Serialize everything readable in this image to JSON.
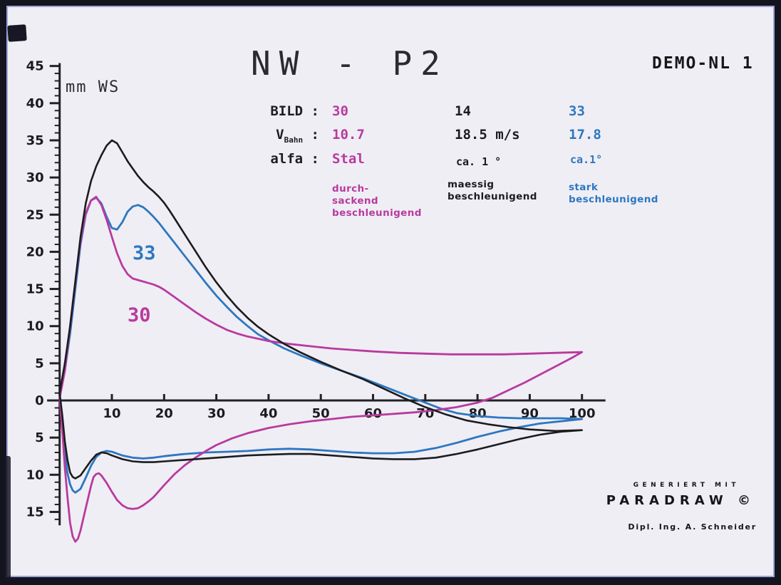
{
  "colors": {
    "magenta": "#b93a9e",
    "blue": "#2d77c0",
    "black": "#1c1c1e",
    "axis": "#222226",
    "paper": "#efeef5",
    "frame": "#14141f"
  },
  "header": {
    "title": "NW - P2",
    "plot_id": "DEMO-NL 1",
    "y_unit_label": "mm WS"
  },
  "legend": {
    "rows": [
      {
        "label": "BILD :",
        "values": [
          "30",
          "14",
          "33"
        ]
      },
      {
        "label_main": "V",
        "label_sub": "Bahn",
        "label_tail": " :",
        "values": [
          "10.7",
          "18.5 m/s",
          "17.8"
        ]
      },
      {
        "label": "alfa :",
        "values": [
          "Stal",
          "ca. 1 °",
          "ca.1°"
        ]
      }
    ],
    "descriptions": [
      "durch-\nsackend\nbeschleunigend",
      "maessig\nbeschleunigend",
      "stark\nbeschleunigend"
    ]
  },
  "curve_labels": [
    {
      "text": "33"
    },
    {
      "text": "30"
    }
  ],
  "footer": {
    "line1": "GENERIERT MIT",
    "line2": "PARADRAW ©",
    "line3": "Dipl. Ing. A. Schneider"
  },
  "chart_data": {
    "type": "line",
    "title": "NW - P2",
    "xlabel": "",
    "ylabel": "mm WS",
    "xlim": [
      0,
      104.5
    ],
    "ylim": [
      -19.5,
      45.5
    ],
    "grid": false,
    "x_ticks": [
      10,
      20,
      30,
      40,
      50,
      60,
      70,
      80,
      90,
      100
    ],
    "y_major_tick_step": 5,
    "y_minor_tick_step": 1,
    "y_label_style": "absolute-value",
    "y_label_range": [
      45,
      -15
    ],
    "legend_entries": [
      "BILD 30, V_Bahn 10.7, alfa Stal, durchsackend beschleunigend",
      "BILD 14, V_Bahn 18.5 m/s, alfa ca. 1°, maessig beschleunigend",
      "BILD 33, V_Bahn 17.8, alfa ca. 1°, stark beschleunigend"
    ],
    "series": [
      {
        "name": "BILD 33",
        "color": "#2d77c0",
        "width": 2.8,
        "upper": [
          [
            0,
            0.5
          ],
          [
            1,
            4
          ],
          [
            2,
            9
          ],
          [
            3,
            15
          ],
          [
            4,
            21
          ],
          [
            5,
            25
          ],
          [
            6,
            26.9
          ],
          [
            7,
            27.3
          ],
          [
            8,
            26.5
          ],
          [
            9,
            24.7
          ],
          [
            10,
            23.2
          ],
          [
            11,
            23
          ],
          [
            12,
            24
          ],
          [
            13,
            25.4
          ],
          [
            14,
            26.1
          ],
          [
            15,
            26.3
          ],
          [
            16,
            26
          ],
          [
            17,
            25.4
          ],
          [
            18,
            24.7
          ],
          [
            19,
            23.9
          ],
          [
            20,
            23
          ],
          [
            22,
            21.2
          ],
          [
            24,
            19.4
          ],
          [
            26,
            17.6
          ],
          [
            28,
            15.8
          ],
          [
            30,
            14.1
          ],
          [
            32,
            12.6
          ],
          [
            34,
            11.2
          ],
          [
            36,
            10
          ],
          [
            38,
            8.9
          ],
          [
            40,
            8.1
          ],
          [
            43,
            7
          ],
          [
            46,
            6.1
          ],
          [
            50,
            5
          ],
          [
            54,
            4
          ],
          [
            58,
            3
          ],
          [
            62,
            1.9
          ],
          [
            66,
            0.8
          ],
          [
            70,
            -0.3
          ],
          [
            73,
            -1.1
          ],
          [
            76,
            -1.7
          ],
          [
            80,
            -2.1
          ],
          [
            84,
            -2.3
          ],
          [
            88,
            -2.4
          ],
          [
            92,
            -2.4
          ],
          [
            96,
            -2.4
          ],
          [
            100,
            -2.5
          ]
        ],
        "lower": [
          [
            0,
            0.5
          ],
          [
            0.5,
            -3
          ],
          [
            1,
            -7
          ],
          [
            1.5,
            -9.8
          ],
          [
            2,
            -11.3
          ],
          [
            2.5,
            -12.1
          ],
          [
            3,
            -12.4
          ],
          [
            4,
            -11.9
          ],
          [
            5,
            -10.4
          ],
          [
            6,
            -8.8
          ],
          [
            7,
            -7.6
          ],
          [
            8,
            -7
          ],
          [
            9,
            -6.8
          ],
          [
            10,
            -6.9
          ],
          [
            12,
            -7.4
          ],
          [
            14,
            -7.7
          ],
          [
            16,
            -7.8
          ],
          [
            18,
            -7.7
          ],
          [
            20,
            -7.5
          ],
          [
            24,
            -7.2
          ],
          [
            28,
            -7
          ],
          [
            32,
            -6.9
          ],
          [
            36,
            -6.8
          ],
          [
            40,
            -6.6
          ],
          [
            44,
            -6.5
          ],
          [
            48,
            -6.6
          ],
          [
            52,
            -6.8
          ],
          [
            56,
            -7
          ],
          [
            60,
            -7.1
          ],
          [
            64,
            -7.1
          ],
          [
            68,
            -6.9
          ],
          [
            72,
            -6.4
          ],
          [
            76,
            -5.7
          ],
          [
            80,
            -4.9
          ],
          [
            84,
            -4.2
          ],
          [
            88,
            -3.6
          ],
          [
            92,
            -3.1
          ],
          [
            96,
            -2.8
          ],
          [
            100,
            -2.5
          ]
        ]
      },
      {
        "name": "BILD 30",
        "color": "#b93a9e",
        "width": 2.8,
        "upper": [
          [
            0,
            0.3
          ],
          [
            1,
            4
          ],
          [
            2,
            10
          ],
          [
            3,
            16
          ],
          [
            4,
            21.5
          ],
          [
            5,
            25.2
          ],
          [
            6,
            26.9
          ],
          [
            7,
            27.4
          ],
          [
            8,
            26.3
          ],
          [
            9,
            24.3
          ],
          [
            10,
            22
          ],
          [
            11,
            19.8
          ],
          [
            12,
            18.1
          ],
          [
            13,
            17
          ],
          [
            14,
            16.4
          ],
          [
            15,
            16.2
          ],
          [
            16,
            16
          ],
          [
            17,
            15.8
          ],
          [
            18,
            15.6
          ],
          [
            19,
            15.3
          ],
          [
            20,
            14.9
          ],
          [
            22,
            13.9
          ],
          [
            24,
            12.9
          ],
          [
            26,
            11.9
          ],
          [
            28,
            11
          ],
          [
            30,
            10.2
          ],
          [
            32,
            9.5
          ],
          [
            34,
            9
          ],
          [
            36,
            8.6
          ],
          [
            38,
            8.3
          ],
          [
            40,
            8
          ],
          [
            44,
            7.6
          ],
          [
            48,
            7.3
          ],
          [
            52,
            7
          ],
          [
            56,
            6.8
          ],
          [
            60,
            6.6
          ],
          [
            65,
            6.4
          ],
          [
            70,
            6.3
          ],
          [
            75,
            6.2
          ],
          [
            80,
            6.2
          ],
          [
            85,
            6.2
          ],
          [
            90,
            6.3
          ],
          [
            95,
            6.4
          ],
          [
            100,
            6.5
          ]
        ],
        "lower": [
          [
            0,
            0.3
          ],
          [
            0.5,
            -4
          ],
          [
            1,
            -9
          ],
          [
            1.5,
            -13
          ],
          [
            2,
            -16.5
          ],
          [
            2.5,
            -18.3
          ],
          [
            3,
            -19
          ],
          [
            3.5,
            -18.6
          ],
          [
            4,
            -17.5
          ],
          [
            5,
            -14.5
          ],
          [
            6,
            -11.5
          ],
          [
            6.5,
            -10.3
          ],
          [
            7,
            -9.9
          ],
          [
            7.5,
            -9.8
          ],
          [
            8,
            -10.1
          ],
          [
            9,
            -11.1
          ],
          [
            10,
            -12.3
          ],
          [
            11,
            -13.4
          ],
          [
            12,
            -14.1
          ],
          [
            13,
            -14.5
          ],
          [
            14,
            -14.6
          ],
          [
            15,
            -14.5
          ],
          [
            16,
            -14.1
          ],
          [
            17,
            -13.6
          ],
          [
            18,
            -13
          ],
          [
            19,
            -12.2
          ],
          [
            20,
            -11.4
          ],
          [
            22,
            -9.9
          ],
          [
            24,
            -8.7
          ],
          [
            26,
            -7.7
          ],
          [
            28,
            -6.8
          ],
          [
            30,
            -6
          ],
          [
            33,
            -5.1
          ],
          [
            36,
            -4.4
          ],
          [
            40,
            -3.7
          ],
          [
            44,
            -3.2
          ],
          [
            48,
            -2.8
          ],
          [
            52,
            -2.5
          ],
          [
            56,
            -2.2
          ],
          [
            60,
            -2
          ],
          [
            64,
            -1.8
          ],
          [
            68,
            -1.6
          ],
          [
            72,
            -1.3
          ],
          [
            76,
            -0.9
          ],
          [
            80,
            -0.3
          ],
          [
            83,
            0.4
          ],
          [
            86,
            1.4
          ],
          [
            89,
            2.4
          ],
          [
            92,
            3.5
          ],
          [
            95,
            4.6
          ],
          [
            98,
            5.7
          ],
          [
            100,
            6.5
          ]
        ]
      },
      {
        "name": "BILD 14",
        "color": "#1c1c1e",
        "width": 2.6,
        "upper": [
          [
            0,
            1
          ],
          [
            1,
            5
          ],
          [
            2,
            10
          ],
          [
            3,
            16
          ],
          [
            4,
            22
          ],
          [
            5,
            26.5
          ],
          [
            6,
            29.5
          ],
          [
            7,
            31.5
          ],
          [
            8,
            33
          ],
          [
            9,
            34.3
          ],
          [
            10,
            35
          ],
          [
            11,
            34.6
          ],
          [
            12,
            33.4
          ],
          [
            13,
            32.2
          ],
          [
            14,
            31.2
          ],
          [
            15,
            30.2
          ],
          [
            16,
            29.4
          ],
          [
            17,
            28.7
          ],
          [
            18,
            28.1
          ],
          [
            19,
            27.4
          ],
          [
            20,
            26.6
          ],
          [
            21,
            25.6
          ],
          [
            22,
            24.5
          ],
          [
            24,
            22.3
          ],
          [
            26,
            20.1
          ],
          [
            28,
            17.9
          ],
          [
            30,
            15.9
          ],
          [
            32,
            14.1
          ],
          [
            34,
            12.5
          ],
          [
            36,
            11.1
          ],
          [
            38,
            9.9
          ],
          [
            40,
            8.9
          ],
          [
            43,
            7.6
          ],
          [
            46,
            6.5
          ],
          [
            50,
            5.2
          ],
          [
            54,
            4
          ],
          [
            58,
            2.9
          ],
          [
            62,
            1.6
          ],
          [
            66,
            0.3
          ],
          [
            70,
            -0.9
          ],
          [
            74,
            -1.9
          ],
          [
            78,
            -2.7
          ],
          [
            82,
            -3.2
          ],
          [
            86,
            -3.6
          ],
          [
            90,
            -3.9
          ],
          [
            95,
            -4.1
          ],
          [
            100,
            -4
          ]
        ],
        "lower": [
          [
            0,
            1
          ],
          [
            0.5,
            -2
          ],
          [
            1,
            -5.5
          ],
          [
            1.5,
            -8
          ],
          [
            2,
            -9.7
          ],
          [
            2.5,
            -10.3
          ],
          [
            3,
            -10.5
          ],
          [
            4,
            -10.1
          ],
          [
            5,
            -9.1
          ],
          [
            6,
            -8.1
          ],
          [
            7,
            -7.3
          ],
          [
            8,
            -7
          ],
          [
            9,
            -7.1
          ],
          [
            10,
            -7.4
          ],
          [
            12,
            -7.9
          ],
          [
            14,
            -8.2
          ],
          [
            16,
            -8.3
          ],
          [
            18,
            -8.3
          ],
          [
            20,
            -8.2
          ],
          [
            24,
            -8
          ],
          [
            28,
            -7.8
          ],
          [
            32,
            -7.6
          ],
          [
            36,
            -7.4
          ],
          [
            40,
            -7.3
          ],
          [
            44,
            -7.2
          ],
          [
            48,
            -7.2
          ],
          [
            52,
            -7.4
          ],
          [
            56,
            -7.6
          ],
          [
            60,
            -7.8
          ],
          [
            64,
            -7.9
          ],
          [
            68,
            -7.9
          ],
          [
            72,
            -7.7
          ],
          [
            76,
            -7.2
          ],
          [
            80,
            -6.6
          ],
          [
            84,
            -5.9
          ],
          [
            88,
            -5.2
          ],
          [
            92,
            -4.6
          ],
          [
            96,
            -4.2
          ],
          [
            100,
            -4
          ]
        ]
      }
    ]
  }
}
